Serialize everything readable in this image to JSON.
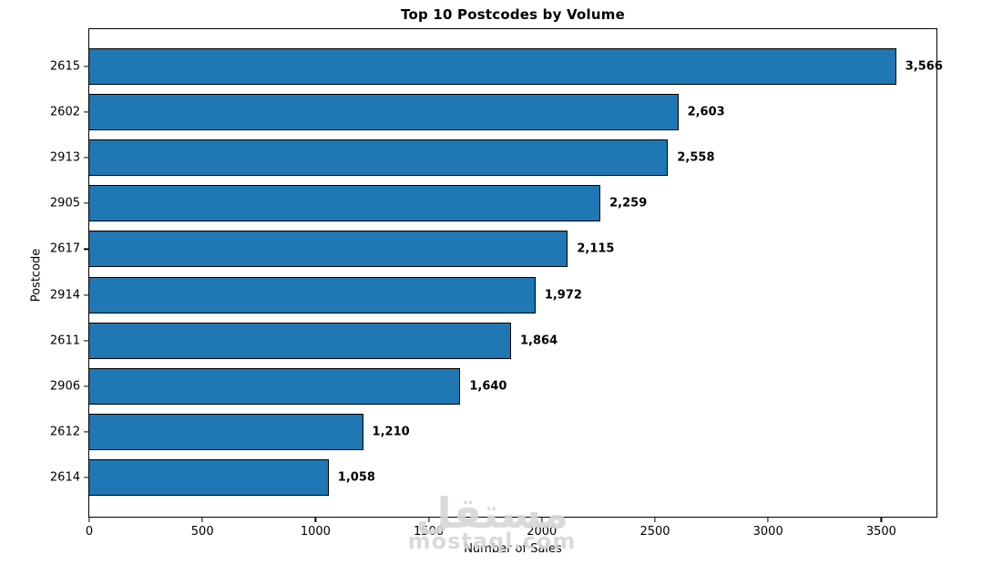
{
  "figure": {
    "title": "Top 10 Postcodes by Volume",
    "xlabel": "Number of Sales",
    "ylabel": "Postcode"
  },
  "chart_data": {
    "type": "bar",
    "orientation": "horizontal",
    "title": "Top 10 Postcodes by Volume",
    "xlabel": "Number of Sales",
    "ylabel": "Postcode",
    "categories": [
      "2615",
      "2602",
      "2913",
      "2905",
      "2617",
      "2914",
      "2611",
      "2906",
      "2612",
      "2614"
    ],
    "values": [
      3566,
      2603,
      2558,
      2259,
      2115,
      1972,
      1864,
      1640,
      1210,
      1058
    ],
    "value_labels": [
      "3,566",
      "2,603",
      "2,558",
      "2,259",
      "2,115",
      "1,972",
      "1,864",
      "1,640",
      "1,210",
      "1,058"
    ],
    "xlim": [
      0,
      3744
    ],
    "xticks": [
      0,
      500,
      1000,
      1500,
      2000,
      2500,
      3000,
      3500
    ],
    "bar_color": "#1f77b4",
    "bar_edge_color": "#000000",
    "grid": false,
    "legend_position": "none",
    "value_labels_bold": true
  },
  "watermark": {
    "arabic_text": "مستقل",
    "domain_text": "mostaql.com",
    "color": "#d7d7d7"
  }
}
